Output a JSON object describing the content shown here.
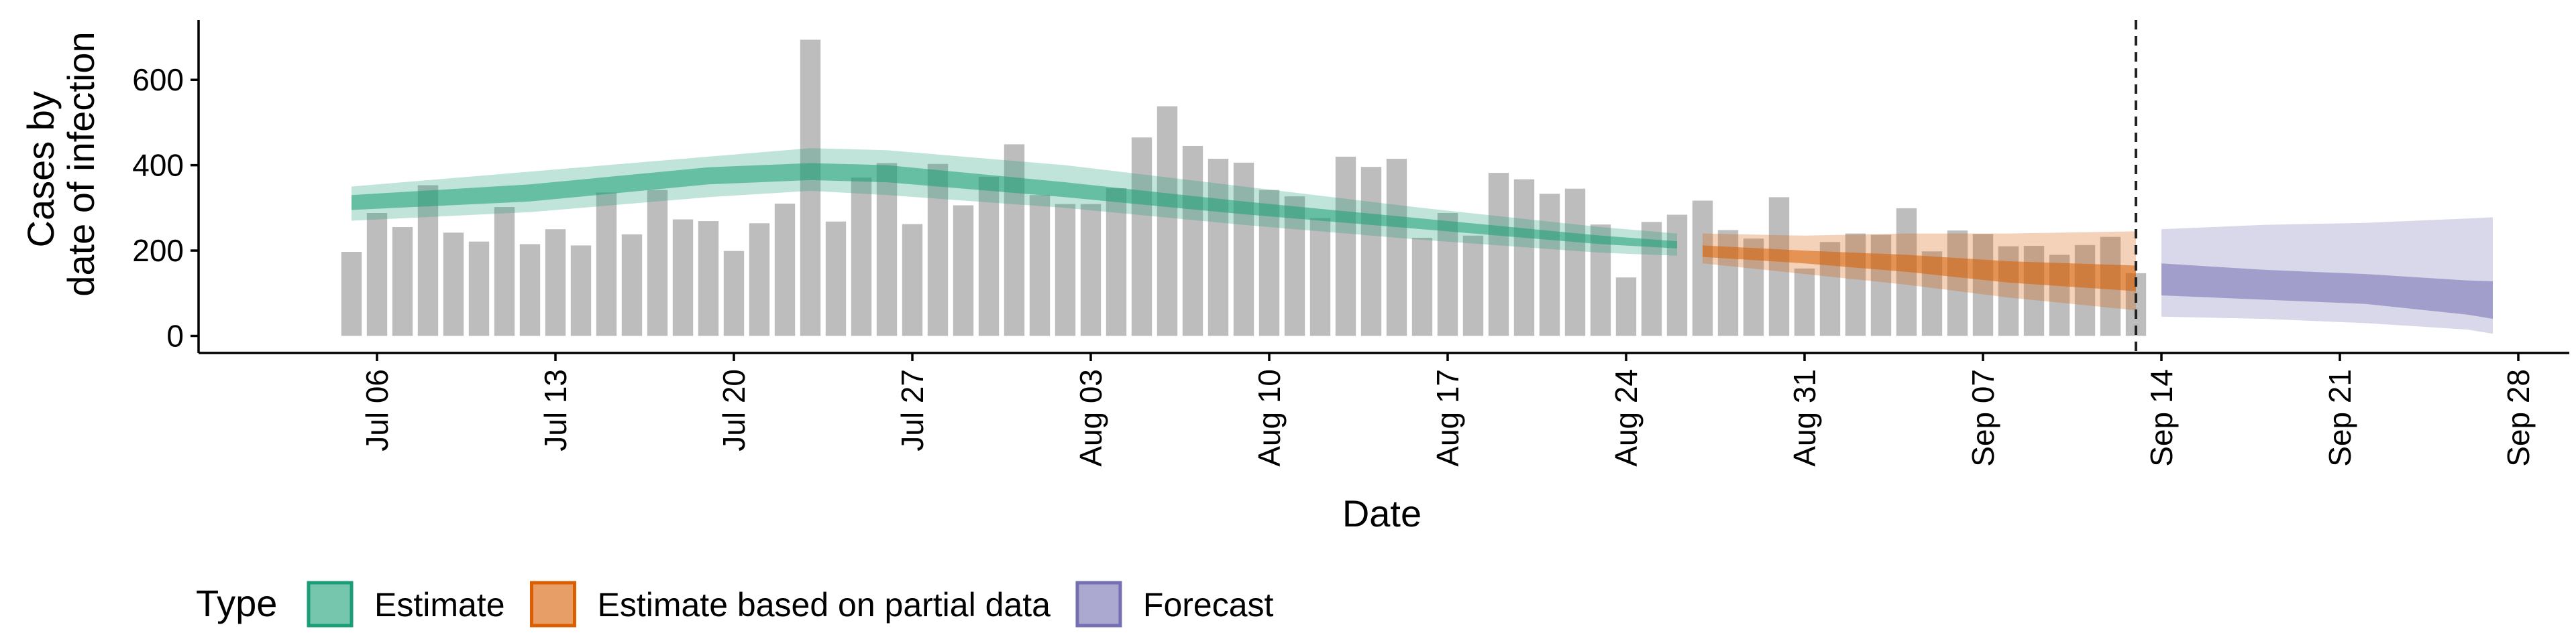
{
  "chart_data": {
    "type": "bar",
    "xlabel": "Date",
    "ylabel_lines": [
      "Cases by",
      "date of infection"
    ],
    "x_range": [
      "2020-06-29",
      "2020-09-30"
    ],
    "ylim": [
      -40,
      740
    ],
    "y_ticks": [
      0,
      200,
      400,
      600
    ],
    "x_ticks": [
      {
        "date": "2020-07-06",
        "label": "Jul 06"
      },
      {
        "date": "2020-07-13",
        "label": "Jul 13"
      },
      {
        "date": "2020-07-20",
        "label": "Jul 20"
      },
      {
        "date": "2020-07-27",
        "label": "Jul 27"
      },
      {
        "date": "2020-08-03",
        "label": "Aug 03"
      },
      {
        "date": "2020-08-10",
        "label": "Aug 10"
      },
      {
        "date": "2020-08-17",
        "label": "Aug 17"
      },
      {
        "date": "2020-08-24",
        "label": "Aug 24"
      },
      {
        "date": "2020-08-31",
        "label": "Aug 31"
      },
      {
        "date": "2020-09-07",
        "label": "Sep 07"
      },
      {
        "date": "2020-09-14",
        "label": "Sep 14"
      },
      {
        "date": "2020-09-21",
        "label": "Sep 21"
      },
      {
        "date": "2020-09-28",
        "label": "Sep 28"
      }
    ],
    "forecast_date": "2020-09-13",
    "grid": false,
    "bars": {
      "color": "#bdbdbd",
      "dates": [
        "2020-07-05",
        "2020-07-06",
        "2020-07-07",
        "2020-07-08",
        "2020-07-09",
        "2020-07-10",
        "2020-07-11",
        "2020-07-12",
        "2020-07-13",
        "2020-07-14",
        "2020-07-15",
        "2020-07-16",
        "2020-07-17",
        "2020-07-18",
        "2020-07-19",
        "2020-07-20",
        "2020-07-21",
        "2020-07-22",
        "2020-07-23",
        "2020-07-24",
        "2020-07-25",
        "2020-07-26",
        "2020-07-27",
        "2020-07-28",
        "2020-07-29",
        "2020-07-30",
        "2020-07-31",
        "2020-08-01",
        "2020-08-02",
        "2020-08-03",
        "2020-08-04",
        "2020-08-05",
        "2020-08-06",
        "2020-08-07",
        "2020-08-08",
        "2020-08-09",
        "2020-08-10",
        "2020-08-11",
        "2020-08-12",
        "2020-08-13",
        "2020-08-14",
        "2020-08-15",
        "2020-08-16",
        "2020-08-17",
        "2020-08-18",
        "2020-08-19",
        "2020-08-20",
        "2020-08-21",
        "2020-08-22",
        "2020-08-23",
        "2020-08-24",
        "2020-08-25",
        "2020-08-26",
        "2020-08-27",
        "2020-08-28",
        "2020-08-29",
        "2020-08-30",
        "2020-08-31",
        "2020-09-01",
        "2020-09-02",
        "2020-09-03",
        "2020-09-04",
        "2020-09-05",
        "2020-09-06",
        "2020-09-07",
        "2020-09-08",
        "2020-09-09",
        "2020-09-10",
        "2020-09-11",
        "2020-09-12",
        "2020-09-13"
      ],
      "values": [
        197,
        288,
        255,
        353,
        242,
        221,
        302,
        215,
        250,
        212,
        336,
        238,
        342,
        273,
        269,
        199,
        264,
        310,
        694,
        268,
        371,
        405,
        262,
        403,
        306,
        373,
        449,
        330,
        309,
        309,
        346,
        465,
        538,
        445,
        415,
        406,
        342,
        327,
        276,
        420,
        396,
        415,
        230,
        288,
        235,
        382,
        367,
        333,
        345,
        261,
        137,
        267,
        284,
        317,
        248,
        228,
        325,
        158,
        220,
        240,
        237,
        299,
        198,
        247,
        239,
        210,
        211,
        190,
        213,
        232,
        147
      ]
    },
    "series": [
      {
        "name": "Estimate",
        "color": "#1b9e77",
        "dates": [
          "2020-07-05",
          "2020-07-12",
          "2020-07-19",
          "2020-07-23",
          "2020-07-26",
          "2020-08-02",
          "2020-08-09",
          "2020-08-16",
          "2020-08-23",
          "2020-08-26"
        ],
        "outer_lower": [
          270,
          290,
          325,
          340,
          330,
          300,
          260,
          225,
          195,
          188
        ],
        "inner_lower": [
          295,
          315,
          355,
          365,
          360,
          325,
          285,
          250,
          215,
          205
        ],
        "inner_upper": [
          330,
          355,
          395,
          405,
          400,
          360,
          315,
          275,
          235,
          222
        ],
        "outer_upper": [
          350,
          385,
          420,
          440,
          435,
          400,
          350,
          300,
          255,
          240
        ]
      },
      {
        "name": "Estimate based on partial data",
        "color": "#d95f02",
        "dates": [
          "2020-08-27",
          "2020-08-31",
          "2020-09-04",
          "2020-09-08",
          "2020-09-13"
        ],
        "outer_lower": [
          170,
          145,
          120,
          90,
          60
        ],
        "inner_lower": [
          185,
          170,
          150,
          125,
          105
        ],
        "inner_upper": [
          212,
          200,
          190,
          175,
          165
        ],
        "outer_upper": [
          240,
          235,
          240,
          240,
          245
        ]
      },
      {
        "name": "Forecast",
        "color": "#7570b3",
        "dates": [
          "2020-09-14",
          "2020-09-18",
          "2020-09-22",
          "2020-09-26",
          "2020-09-27"
        ],
        "outer_lower": [
          45,
          40,
          30,
          15,
          5
        ],
        "inner_lower": [
          95,
          85,
          75,
          50,
          40
        ],
        "inner_upper": [
          170,
          155,
          145,
          130,
          128
        ],
        "outer_upper": [
          250,
          260,
          265,
          275,
          278
        ]
      }
    ],
    "legend": {
      "title": "Type",
      "position": "bottom-left",
      "items": [
        {
          "label": "Estimate",
          "color": "#1b9e77"
        },
        {
          "label": "Estimate based on partial data",
          "color": "#d95f02"
        },
        {
          "label": "Forecast",
          "color": "#7570b3"
        }
      ]
    }
  }
}
